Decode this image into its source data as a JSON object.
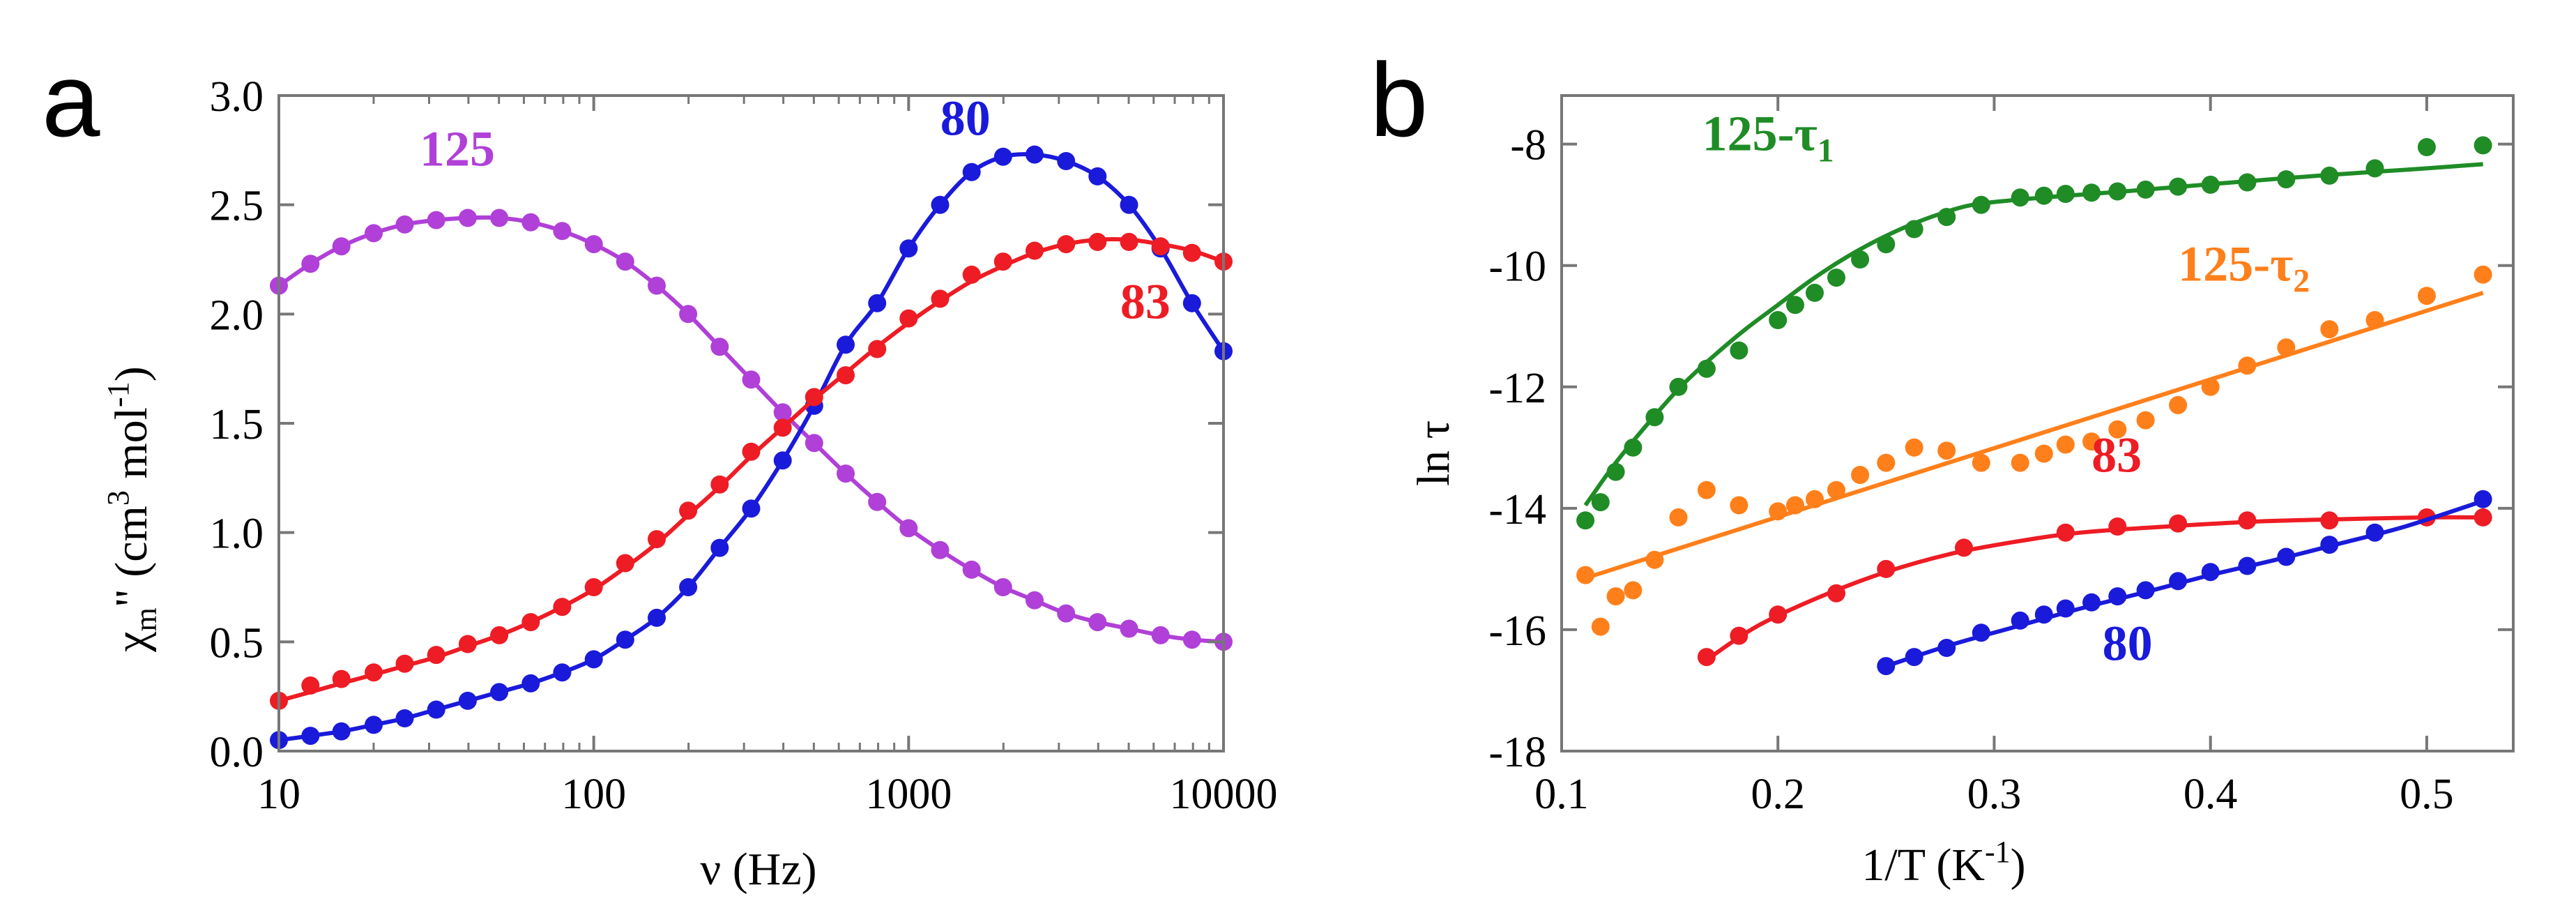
{
  "panels": [
    {
      "letter": "a",
      "chart_data": {
        "type": "scatter",
        "xscale": "log",
        "xlabel": "ν (Hz)",
        "ylabel": "χm\" (cm³ mol⁻¹)",
        "ylabel_parts": {
          "chi": "χ",
          "sub": "m",
          "prime": "\" (cm",
          "sup1": "3",
          "mid": " mol",
          "sup2": "-1",
          "close": ")"
        },
        "xlim": [
          10,
          10000
        ],
        "ylim": [
          0.0,
          3.0
        ],
        "xticks": [
          10,
          100,
          1000,
          10000
        ],
        "xtick_labels": [
          "10",
          "100",
          "1000",
          "10000"
        ],
        "yticks": [
          0.0,
          0.5,
          1.0,
          1.5,
          2.0,
          2.5,
          3.0
        ],
        "ytick_labels": [
          "0.0",
          "0.5",
          "1.0",
          "1.5",
          "2.0",
          "2.5",
          "3.0"
        ],
        "series": [
          {
            "name": "125",
            "color": "#b040d8",
            "label_pos": [
              28,
              2.68
            ],
            "x": [
              10,
              12.6,
              15.8,
              20,
              25.1,
              31.6,
              39.8,
              50.1,
              63.1,
              79.4,
              100,
              125.9,
              158.5,
              199.5,
              251.2,
              316.2,
              398.1,
              501.2,
              631,
              794.3,
              1000,
              1258.9,
              1584.9,
              1995.3,
              2511.9,
              3162.3,
              3981.1,
              5011.9,
              6309.6,
              7943.3,
              10000
            ],
            "y": [
              2.13,
              2.23,
              2.31,
              2.37,
              2.41,
              2.43,
              2.44,
              2.44,
              2.42,
              2.38,
              2.32,
              2.24,
              2.13,
              2.0,
              1.85,
              1.7,
              1.55,
              1.41,
              1.27,
              1.14,
              1.02,
              0.92,
              0.83,
              0.75,
              0.69,
              0.63,
              0.59,
              0.56,
              0.53,
              0.51,
              0.5
            ],
            "fit_y": [
              2.13,
              2.23,
              2.31,
              2.37,
              2.41,
              2.43,
              2.44,
              2.44,
              2.42,
              2.38,
              2.32,
              2.24,
              2.13,
              2.0,
              1.85,
              1.7,
              1.55,
              1.41,
              1.27,
              1.14,
              1.02,
              0.92,
              0.83,
              0.75,
              0.69,
              0.63,
              0.59,
              0.56,
              0.53,
              0.51,
              0.5
            ]
          },
          {
            "name": "80",
            "color": "#1a1adb",
            "label_pos": [
              1260,
              2.82
            ],
            "x": [
              10,
              12.6,
              15.8,
              20,
              25.1,
              31.6,
              39.8,
              50.1,
              63.1,
              79.4,
              100,
              125.9,
              158.5,
              199.5,
              251.2,
              316.2,
              398.1,
              501.2,
              631,
              794.3,
              1000,
              1258.9,
              1584.9,
              1995.3,
              2511.9,
              3162.3,
              3981.1,
              5011.9,
              6309.6,
              7943.3,
              10000
            ],
            "y": [
              0.05,
              0.07,
              0.09,
              0.12,
              0.15,
              0.19,
              0.23,
              0.27,
              0.31,
              0.36,
              0.42,
              0.51,
              0.61,
              0.75,
              0.93,
              1.11,
              1.33,
              1.58,
              1.86,
              2.05,
              2.3,
              2.5,
              2.65,
              2.72,
              2.73,
              2.7,
              2.63,
              2.5,
              2.3,
              2.05,
              1.83
            ],
            "fit_y": [
              0.05,
              0.07,
              0.09,
              0.12,
              0.15,
              0.19,
              0.23,
              0.27,
              0.31,
              0.36,
              0.42,
              0.51,
              0.61,
              0.75,
              0.93,
              1.11,
              1.33,
              1.58,
              1.86,
              2.05,
              2.3,
              2.5,
              2.65,
              2.72,
              2.73,
              2.7,
              2.63,
              2.5,
              2.3,
              2.05,
              1.83
            ]
          },
          {
            "name": "83",
            "color": "#ee1c24",
            "label_pos": [
              4700,
              1.98
            ],
            "x": [
              10,
              12.6,
              15.8,
              20,
              25.1,
              31.6,
              39.8,
              50.1,
              63.1,
              79.4,
              100,
              125.9,
              158.5,
              199.5,
              251.2,
              316.2,
              398.1,
              501.2,
              631,
              794.3,
              1000,
              1258.9,
              1584.9,
              1995.3,
              2511.9,
              3162.3,
              3981.1,
              5011.9,
              6309.6,
              7943.3,
              10000
            ],
            "y": [
              0.23,
              0.3,
              0.33,
              0.36,
              0.4,
              0.44,
              0.49,
              0.53,
              0.59,
              0.66,
              0.75,
              0.86,
              0.97,
              1.1,
              1.22,
              1.37,
              1.48,
              1.62,
              1.72,
              1.84,
              1.98,
              2.07,
              2.18,
              2.24,
              2.29,
              2.32,
              2.33,
              2.33,
              2.31,
              2.28,
              2.24
            ],
            "fit_y": [
              0.23,
              0.27,
              0.31,
              0.35,
              0.39,
              0.43,
              0.48,
              0.53,
              0.59,
              0.66,
              0.74,
              0.84,
              0.95,
              1.08,
              1.21,
              1.35,
              1.48,
              1.61,
              1.73,
              1.85,
              1.96,
              2.06,
              2.15,
              2.22,
              2.28,
              2.32,
              2.34,
              2.34,
              2.32,
              2.29,
              2.24
            ]
          }
        ]
      }
    },
    {
      "letter": "b",
      "chart_data": {
        "type": "scatter",
        "xscale": "linear",
        "xlabel": "1/T (K⁻¹)",
        "xlabel_parts": {
          "main": "1/T (K",
          "sup": "-1",
          "close": ")"
        },
        "ylabel": "ln τ",
        "xlim": [
          0.1,
          0.54
        ],
        "ylim": [
          -18,
          -7.2
        ],
        "xticks": [
          0.1,
          0.2,
          0.3,
          0.4,
          0.5
        ],
        "xtick_labels": [
          "0.1",
          "0.2",
          "0.3",
          "0.4",
          "0.5"
        ],
        "yticks": [
          -18,
          -16,
          -14,
          -12,
          -10,
          -8
        ],
        "ytick_labels": [
          "-18",
          "-16",
          "-14",
          "-12",
          "-10",
          "-8"
        ],
        "series": [
          {
            "name": "125-τ1",
            "label_main": "125-τ",
            "label_sub": "1",
            "color": "#1f8c26",
            "label_pos": [
              0.165,
              -8.1
            ],
            "x": [
              0.111,
              0.118,
              0.125,
              0.133,
              0.143,
              0.154,
              0.167,
              0.182,
              0.2,
              0.208,
              0.217,
              0.227,
              0.238,
              0.25,
              0.263,
              0.278,
              0.294,
              0.312,
              0.323,
              0.333,
              0.345,
              0.357,
              0.37,
              0.385,
              0.4,
              0.417,
              0.435,
              0.455,
              0.476,
              0.5,
              0.526
            ],
            "y": [
              -14.2,
              -13.9,
              -13.4,
              -13.0,
              -12.5,
              -12.0,
              -11.7,
              -11.4,
              -10.9,
              -10.65,
              -10.45,
              -10.2,
              -9.9,
              -9.65,
              -9.4,
              -9.2,
              -9.0,
              -8.88,
              -8.85,
              -8.82,
              -8.8,
              -8.78,
              -8.75,
              -8.7,
              -8.67,
              -8.63,
              -8.58,
              -8.52,
              -8.4,
              -8.05,
              -8.02
            ],
            "fit_x": [
              0.111,
              0.125,
              0.14,
              0.155,
              0.17,
              0.185,
              0.2,
              0.215,
              0.23,
              0.245,
              0.26,
              0.275,
              0.29,
              0.31,
              0.33,
              0.36,
              0.4,
              0.45,
              0.5,
              0.526
            ],
            "fit_y": [
              -13.95,
              -13.25,
              -12.6,
              -12.0,
              -11.5,
              -11.05,
              -10.65,
              -10.25,
              -9.9,
              -9.6,
              -9.35,
              -9.15,
              -9.0,
              -8.92,
              -8.86,
              -8.78,
              -8.66,
              -8.52,
              -8.4,
              -8.33
            ]
          },
          {
            "name": "125-τ2",
            "label_main": "125-τ",
            "label_sub": "2",
            "color": "#ff7f1a",
            "label_pos": [
              0.385,
              -10.25
            ],
            "x": [
              0.111,
              0.118,
              0.125,
              0.133,
              0.143,
              0.154,
              0.167,
              0.182,
              0.2,
              0.208,
              0.217,
              0.227,
              0.238,
              0.25,
              0.263,
              0.278,
              0.294,
              0.312,
              0.323,
              0.333,
              0.345,
              0.357,
              0.37,
              0.385,
              0.4,
              0.417,
              0.435,
              0.455,
              0.476,
              0.5,
              0.526
            ],
            "y": [
              -15.1,
              -15.95,
              -15.45,
              -15.35,
              -14.85,
              -14.15,
              -13.7,
              -13.95,
              -14.05,
              -13.95,
              -13.85,
              -13.7,
              -13.45,
              -13.25,
              -13.0,
              -13.05,
              -13.25,
              -13.25,
              -13.1,
              -12.95,
              -12.9,
              -12.7,
              -12.55,
              -12.3,
              -12.0,
              -11.65,
              -11.35,
              -11.05,
              -10.9,
              -10.5,
              -10.15
            ],
            "fit_x": [
              0.111,
              0.526
            ],
            "fit_y": [
              -15.15,
              -10.45
            ]
          },
          {
            "name": "83",
            "color": "#ee1c24",
            "label_pos": [
              0.345,
              -13.4
            ],
            "x": [
              0.167,
              0.182,
              0.2,
              0.227,
              0.25,
              0.286,
              0.333,
              0.357,
              0.385,
              0.417,
              0.455,
              0.5,
              0.526
            ],
            "y": [
              -16.45,
              -16.1,
              -15.75,
              -15.4,
              -15.0,
              -14.65,
              -14.4,
              -14.3,
              -14.25,
              -14.2,
              -14.2,
              -14.15,
              -14.15
            ],
            "fit_x": [
              0.167,
              0.19,
              0.22,
              0.25,
              0.28,
              0.31,
              0.34,
              0.38,
              0.42,
              0.46,
              0.5,
              0.526
            ],
            "fit_y": [
              -16.5,
              -15.95,
              -15.45,
              -15.05,
              -14.75,
              -14.55,
              -14.4,
              -14.3,
              -14.22,
              -14.18,
              -14.15,
              -14.15
            ]
          },
          {
            "name": "80",
            "color": "#1a1adb",
            "label_pos": [
              0.35,
              -16.5
            ],
            "x": [
              0.25,
              0.263,
              0.278,
              0.294,
              0.312,
              0.323,
              0.333,
              0.345,
              0.357,
              0.37,
              0.385,
              0.4,
              0.417,
              0.435,
              0.455,
              0.476,
              0.526
            ],
            "y": [
              -16.6,
              -16.45,
              -16.3,
              -16.05,
              -15.85,
              -15.75,
              -15.65,
              -15.55,
              -15.45,
              -15.35,
              -15.2,
              -15.05,
              -14.95,
              -14.8,
              -14.6,
              -14.4,
              -13.85
            ],
            "fit_x": [
              0.25,
              0.28,
              0.31,
              0.34,
              0.37,
              0.4,
              0.43,
              0.46,
              0.49,
              0.526
            ],
            "fit_y": [
              -16.6,
              -16.25,
              -15.95,
              -15.65,
              -15.38,
              -15.1,
              -14.85,
              -14.58,
              -14.3,
              -13.88
            ]
          }
        ]
      }
    }
  ]
}
